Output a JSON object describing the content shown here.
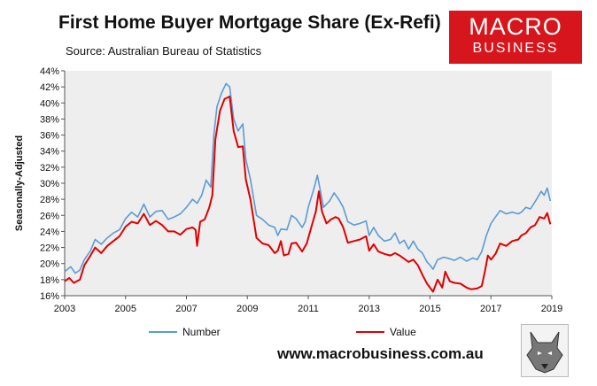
{
  "header": {
    "title": "First Home Buyer Mortgage Share (Ex-Refi)",
    "subtitle": "Source: Australian Bureau of Statistics",
    "logo_line1": "MACRO",
    "logo_line2": "BUSINESS"
  },
  "footer": {
    "url": "www.macrobusiness.com.au"
  },
  "colors": {
    "number": "#5b9bd5",
    "value": "#e00000",
    "plot_bg": "#eeeeee",
    "logo_bg": "#d7151c"
  },
  "chart_data": {
    "type": "line",
    "title": "First Home Buyer Mortgage Share (Ex-Refi)",
    "ylabel": "Seasonally-Adjusted",
    "xlabel": "",
    "xlim": [
      2003,
      2019
    ],
    "ylim": [
      16,
      44
    ],
    "x_ticks": [
      2003,
      2005,
      2007,
      2009,
      2011,
      2013,
      2015,
      2017,
      2019
    ],
    "y_ticks": [
      16,
      18,
      20,
      22,
      24,
      26,
      28,
      30,
      32,
      34,
      36,
      38,
      40,
      42,
      44
    ],
    "y_tick_suffix": "%",
    "grid": false,
    "legend": "bottom",
    "series": [
      {
        "name": "Number",
        "color": "#5b9bd5",
        "points": [
          [
            2003.0,
            19.0
          ],
          [
            2003.2,
            19.6
          ],
          [
            2003.35,
            18.8
          ],
          [
            2003.5,
            19.2
          ],
          [
            2003.65,
            20.5
          ],
          [
            2003.85,
            21.6
          ],
          [
            2004.0,
            23.0
          ],
          [
            2004.2,
            22.4
          ],
          [
            2004.4,
            23.2
          ],
          [
            2004.6,
            23.8
          ],
          [
            2004.8,
            24.2
          ],
          [
            2005.0,
            25.6
          ],
          [
            2005.2,
            26.4
          ],
          [
            2005.4,
            25.8
          ],
          [
            2005.6,
            27.4
          ],
          [
            2005.8,
            25.8
          ],
          [
            2006.0,
            26.5
          ],
          [
            2006.2,
            26.6
          ],
          [
            2006.4,
            25.5
          ],
          [
            2006.6,
            25.8
          ],
          [
            2006.8,
            26.2
          ],
          [
            2007.0,
            27.0
          ],
          [
            2007.2,
            28.0
          ],
          [
            2007.35,
            27.5
          ],
          [
            2007.5,
            28.5
          ],
          [
            2007.65,
            30.4
          ],
          [
            2007.8,
            29.5
          ],
          [
            2007.9,
            36.0
          ],
          [
            2008.0,
            39.5
          ],
          [
            2008.15,
            41.2
          ],
          [
            2008.3,
            42.4
          ],
          [
            2008.42,
            42.0
          ],
          [
            2008.55,
            38.0
          ],
          [
            2008.7,
            36.5
          ],
          [
            2008.85,
            37.4
          ],
          [
            2008.95,
            33.0
          ],
          [
            2009.1,
            30.5
          ],
          [
            2009.3,
            26.0
          ],
          [
            2009.5,
            25.5
          ],
          [
            2009.7,
            24.8
          ],
          [
            2009.9,
            24.5
          ],
          [
            2010.0,
            23.5
          ],
          [
            2010.1,
            24.3
          ],
          [
            2010.3,
            24.2
          ],
          [
            2010.45,
            26.0
          ],
          [
            2010.6,
            25.6
          ],
          [
            2010.8,
            24.5
          ],
          [
            2010.9,
            25.2
          ],
          [
            2011.0,
            27.0
          ],
          [
            2011.2,
            29.5
          ],
          [
            2011.3,
            31.0
          ],
          [
            2011.4,
            29.0
          ],
          [
            2011.5,
            27.0
          ],
          [
            2011.7,
            27.8
          ],
          [
            2011.85,
            28.8
          ],
          [
            2012.0,
            28.0
          ],
          [
            2012.15,
            27.0
          ],
          [
            2012.3,
            25.2
          ],
          [
            2012.5,
            24.8
          ],
          [
            2012.7,
            25.0
          ],
          [
            2012.9,
            25.3
          ],
          [
            2013.0,
            23.5
          ],
          [
            2013.15,
            24.5
          ],
          [
            2013.3,
            23.5
          ],
          [
            2013.5,
            22.8
          ],
          [
            2013.7,
            23.0
          ],
          [
            2013.85,
            23.8
          ],
          [
            2014.0,
            22.5
          ],
          [
            2014.15,
            22.9
          ],
          [
            2014.3,
            21.8
          ],
          [
            2014.45,
            22.8
          ],
          [
            2014.6,
            21.8
          ],
          [
            2014.75,
            21.3
          ],
          [
            2014.9,
            20.2
          ],
          [
            2015.0,
            19.8
          ],
          [
            2015.1,
            19.3
          ],
          [
            2015.25,
            20.5
          ],
          [
            2015.45,
            20.8
          ],
          [
            2015.65,
            20.6
          ],
          [
            2015.8,
            20.4
          ],
          [
            2016.0,
            20.8
          ],
          [
            2016.2,
            20.3
          ],
          [
            2016.4,
            20.7
          ],
          [
            2016.55,
            20.5
          ],
          [
            2016.7,
            21.5
          ],
          [
            2016.85,
            23.5
          ],
          [
            2017.0,
            25.0
          ],
          [
            2017.15,
            25.8
          ],
          [
            2017.3,
            26.6
          ],
          [
            2017.5,
            26.2
          ],
          [
            2017.7,
            26.4
          ],
          [
            2017.9,
            26.2
          ],
          [
            2018.0,
            26.4
          ],
          [
            2018.15,
            27.0
          ],
          [
            2018.3,
            26.8
          ],
          [
            2018.5,
            28.0
          ],
          [
            2018.65,
            29.0
          ],
          [
            2018.75,
            28.5
          ],
          [
            2018.85,
            29.4
          ],
          [
            2018.95,
            27.8
          ]
        ]
      },
      {
        "name": "Value",
        "color": "#e00000",
        "points": [
          [
            2003.0,
            17.8
          ],
          [
            2003.15,
            18.2
          ],
          [
            2003.3,
            17.6
          ],
          [
            2003.5,
            18.0
          ],
          [
            2003.65,
            19.8
          ],
          [
            2003.85,
            21.0
          ],
          [
            2004.0,
            22.0
          ],
          [
            2004.2,
            21.3
          ],
          [
            2004.4,
            22.2
          ],
          [
            2004.6,
            22.8
          ],
          [
            2004.8,
            23.4
          ],
          [
            2005.0,
            24.6
          ],
          [
            2005.2,
            25.2
          ],
          [
            2005.4,
            25.0
          ],
          [
            2005.6,
            26.2
          ],
          [
            2005.8,
            24.8
          ],
          [
            2006.0,
            25.3
          ],
          [
            2006.2,
            24.8
          ],
          [
            2006.4,
            24.0
          ],
          [
            2006.6,
            24.0
          ],
          [
            2006.8,
            23.6
          ],
          [
            2007.0,
            24.3
          ],
          [
            2007.2,
            24.5
          ],
          [
            2007.3,
            24.2
          ],
          [
            2007.35,
            22.2
          ],
          [
            2007.45,
            25.2
          ],
          [
            2007.6,
            25.5
          ],
          [
            2007.75,
            27.0
          ],
          [
            2007.85,
            28.5
          ],
          [
            2007.95,
            35.5
          ],
          [
            2008.1,
            39.0
          ],
          [
            2008.25,
            40.5
          ],
          [
            2008.42,
            40.8
          ],
          [
            2008.55,
            36.5
          ],
          [
            2008.7,
            34.5
          ],
          [
            2008.85,
            34.6
          ],
          [
            2008.95,
            30.5
          ],
          [
            2009.1,
            28.0
          ],
          [
            2009.3,
            23.2
          ],
          [
            2009.5,
            22.5
          ],
          [
            2009.7,
            22.3
          ],
          [
            2009.9,
            21.3
          ],
          [
            2010.0,
            21.6
          ],
          [
            2010.1,
            22.8
          ],
          [
            2010.2,
            21.0
          ],
          [
            2010.35,
            21.2
          ],
          [
            2010.45,
            22.5
          ],
          [
            2010.6,
            22.6
          ],
          [
            2010.8,
            21.5
          ],
          [
            2010.95,
            22.5
          ],
          [
            2011.1,
            24.5
          ],
          [
            2011.25,
            26.5
          ],
          [
            2011.35,
            29.0
          ],
          [
            2011.45,
            26.5
          ],
          [
            2011.6,
            25.0
          ],
          [
            2011.75,
            25.5
          ],
          [
            2011.9,
            25.8
          ],
          [
            2012.0,
            25.6
          ],
          [
            2012.15,
            24.5
          ],
          [
            2012.3,
            22.6
          ],
          [
            2012.5,
            22.8
          ],
          [
            2012.7,
            23.0
          ],
          [
            2012.9,
            23.4
          ],
          [
            2013.0,
            21.6
          ],
          [
            2013.15,
            22.4
          ],
          [
            2013.3,
            21.5
          ],
          [
            2013.5,
            21.2
          ],
          [
            2013.7,
            21.0
          ],
          [
            2013.85,
            21.3
          ],
          [
            2014.0,
            21.0
          ],
          [
            2014.15,
            20.6
          ],
          [
            2014.3,
            20.2
          ],
          [
            2014.45,
            20.5
          ],
          [
            2014.6,
            19.8
          ],
          [
            2014.75,
            18.6
          ],
          [
            2014.9,
            17.5
          ],
          [
            2015.0,
            17.0
          ],
          [
            2015.1,
            16.5
          ],
          [
            2015.25,
            18.0
          ],
          [
            2015.4,
            17.0
          ],
          [
            2015.5,
            19.0
          ],
          [
            2015.65,
            17.8
          ],
          [
            2015.8,
            17.6
          ],
          [
            2016.0,
            17.5
          ],
          [
            2016.2,
            17.0
          ],
          [
            2016.35,
            16.8
          ],
          [
            2016.55,
            16.9
          ],
          [
            2016.7,
            17.2
          ],
          [
            2016.8,
            19.0
          ],
          [
            2016.9,
            21.0
          ],
          [
            2017.0,
            20.5
          ],
          [
            2017.15,
            21.2
          ],
          [
            2017.3,
            22.5
          ],
          [
            2017.5,
            22.2
          ],
          [
            2017.7,
            22.8
          ],
          [
            2017.9,
            23.0
          ],
          [
            2018.0,
            23.5
          ],
          [
            2018.15,
            23.8
          ],
          [
            2018.3,
            24.5
          ],
          [
            2018.45,
            24.8
          ],
          [
            2018.6,
            25.8
          ],
          [
            2018.75,
            25.6
          ],
          [
            2018.85,
            26.3
          ],
          [
            2018.95,
            24.9
          ]
        ]
      }
    ]
  }
}
